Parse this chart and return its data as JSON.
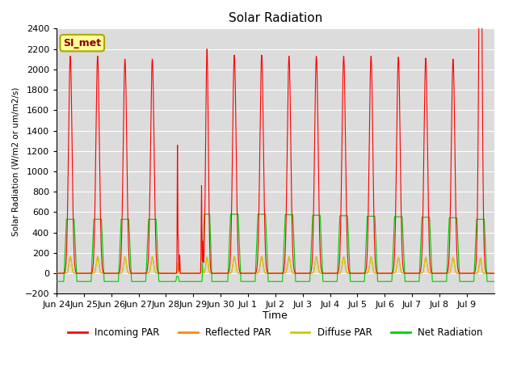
{
  "title": "Solar Radiation",
  "ylabel": "Solar Radiation (W/m2 or um/m2/s)",
  "xlabel": "Time",
  "ylim": [
    -200,
    2400
  ],
  "annotation": "SI_met",
  "bg_color": "#dcdcdc",
  "colors": {
    "incoming": "#ff0000",
    "reflected": "#ff8800",
    "diffuse": "#cccc00",
    "net": "#00cc00"
  },
  "legend": [
    "Incoming PAR",
    "Reflected PAR",
    "Diffuse PAR",
    "Net Radiation"
  ],
  "x_tick_labels": [
    "Jun 24",
    "Jun 25",
    "Jun 26",
    "Jun 27",
    "Jun 28",
    "Jun 29",
    "Jun 30",
    "Jul 1",
    "Jul 2",
    "Jul 3",
    "Jul 4",
    "Jul 5",
    "Jul 6",
    "Jul 7",
    "Jul 8",
    "Jul 9"
  ],
  "num_days": 16,
  "night_net": -80,
  "pts_per_day": 288
}
